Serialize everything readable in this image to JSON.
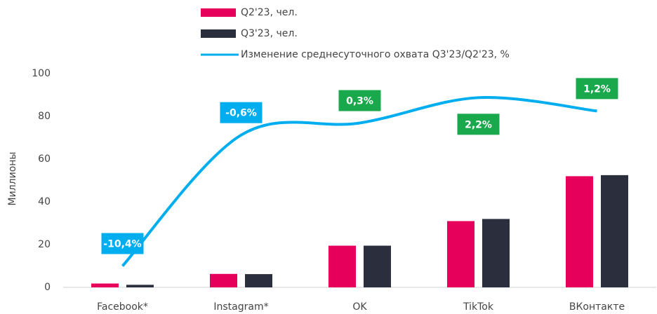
{
  "chart_data": {
    "type": "bar",
    "y_label": "Миллионы",
    "categories": [
      "Facebook*",
      "Instagram*",
      "OK",
      "TikTok",
      "ВКонтакте"
    ],
    "ylim": [
      0,
      100
    ],
    "yticks": [
      0,
      20,
      40,
      60,
      80,
      100
    ],
    "y2lim": [
      -12,
      4
    ],
    "series": [
      {
        "name": "Q2'23, чел.",
        "color": "#e6005c",
        "values": [
          1.8,
          6.3,
          19.5,
          31,
          52
        ]
      },
      {
        "name": "Q3'23, чел.",
        "color": "#2b2e3d",
        "values": [
          1.2,
          6.2,
          19.5,
          32,
          52.5
        ]
      },
      {
        "name": "Изменение среднесуточного охвата Q3'23/Q2'23, %",
        "type": "line",
        "axis": "y2",
        "color": "#00aeef",
        "values": [
          -10.4,
          -0.6,
          0.3,
          2.2,
          1.2
        ],
        "value_labels": [
          "-10,4%",
          "-0,6%",
          "0,3%",
          "2,2%",
          "1,2%"
        ],
        "value_label_colors": [
          "#00aeef",
          "#00aeef",
          "#19a84b",
          "#19a84b",
          "#19a84b"
        ],
        "value_label_positions": [
          "above",
          "above",
          "above",
          "below",
          "above"
        ]
      }
    ]
  }
}
